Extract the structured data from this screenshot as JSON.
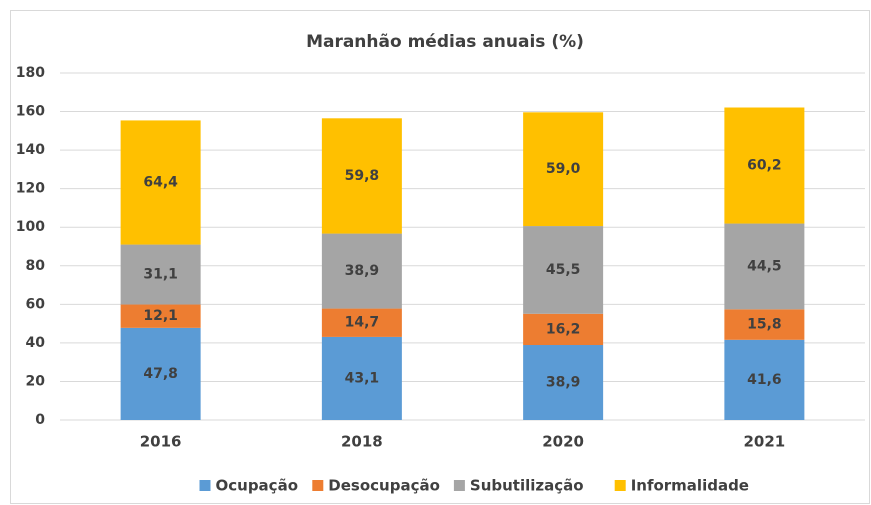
{
  "chart_data": {
    "type": "stacked_bar",
    "title": "Maranhão médias anuais (%)",
    "categories": [
      "2016",
      "2018",
      "2020",
      "2021"
    ],
    "series": [
      {
        "name": "Ocupação",
        "color": "#5b9bd5",
        "values": [
          47.8,
          43.1,
          38.9,
          41.6
        ],
        "value_labels": [
          "47,8",
          "43,1",
          "38,9",
          "41,6"
        ]
      },
      {
        "name": "Desocupação",
        "color": "#ed7d31",
        "values": [
          12.1,
          14.7,
          16.2,
          15.8
        ],
        "value_labels": [
          "12,1",
          "14,7",
          "16,2",
          "15,8"
        ]
      },
      {
        "name": "Subutilização",
        "color": "#a5a5a5",
        "values": [
          31.1,
          38.9,
          45.5,
          44.5
        ],
        "value_labels": [
          "31,1",
          "38,9",
          "45,5",
          "44,5"
        ]
      },
      {
        "name": "Informalidade",
        "color": "#ffc000",
        "values": [
          64.4,
          59.8,
          59.0,
          60.2
        ],
        "value_labels": [
          "64,4",
          "59,8",
          "59,0",
          "60,2"
        ]
      }
    ],
    "ylim": [
      0,
      180
    ],
    "yticks": [
      0,
      20,
      40,
      60,
      80,
      100,
      120,
      140,
      160,
      180
    ],
    "grid": true,
    "legend": "bottom"
  }
}
